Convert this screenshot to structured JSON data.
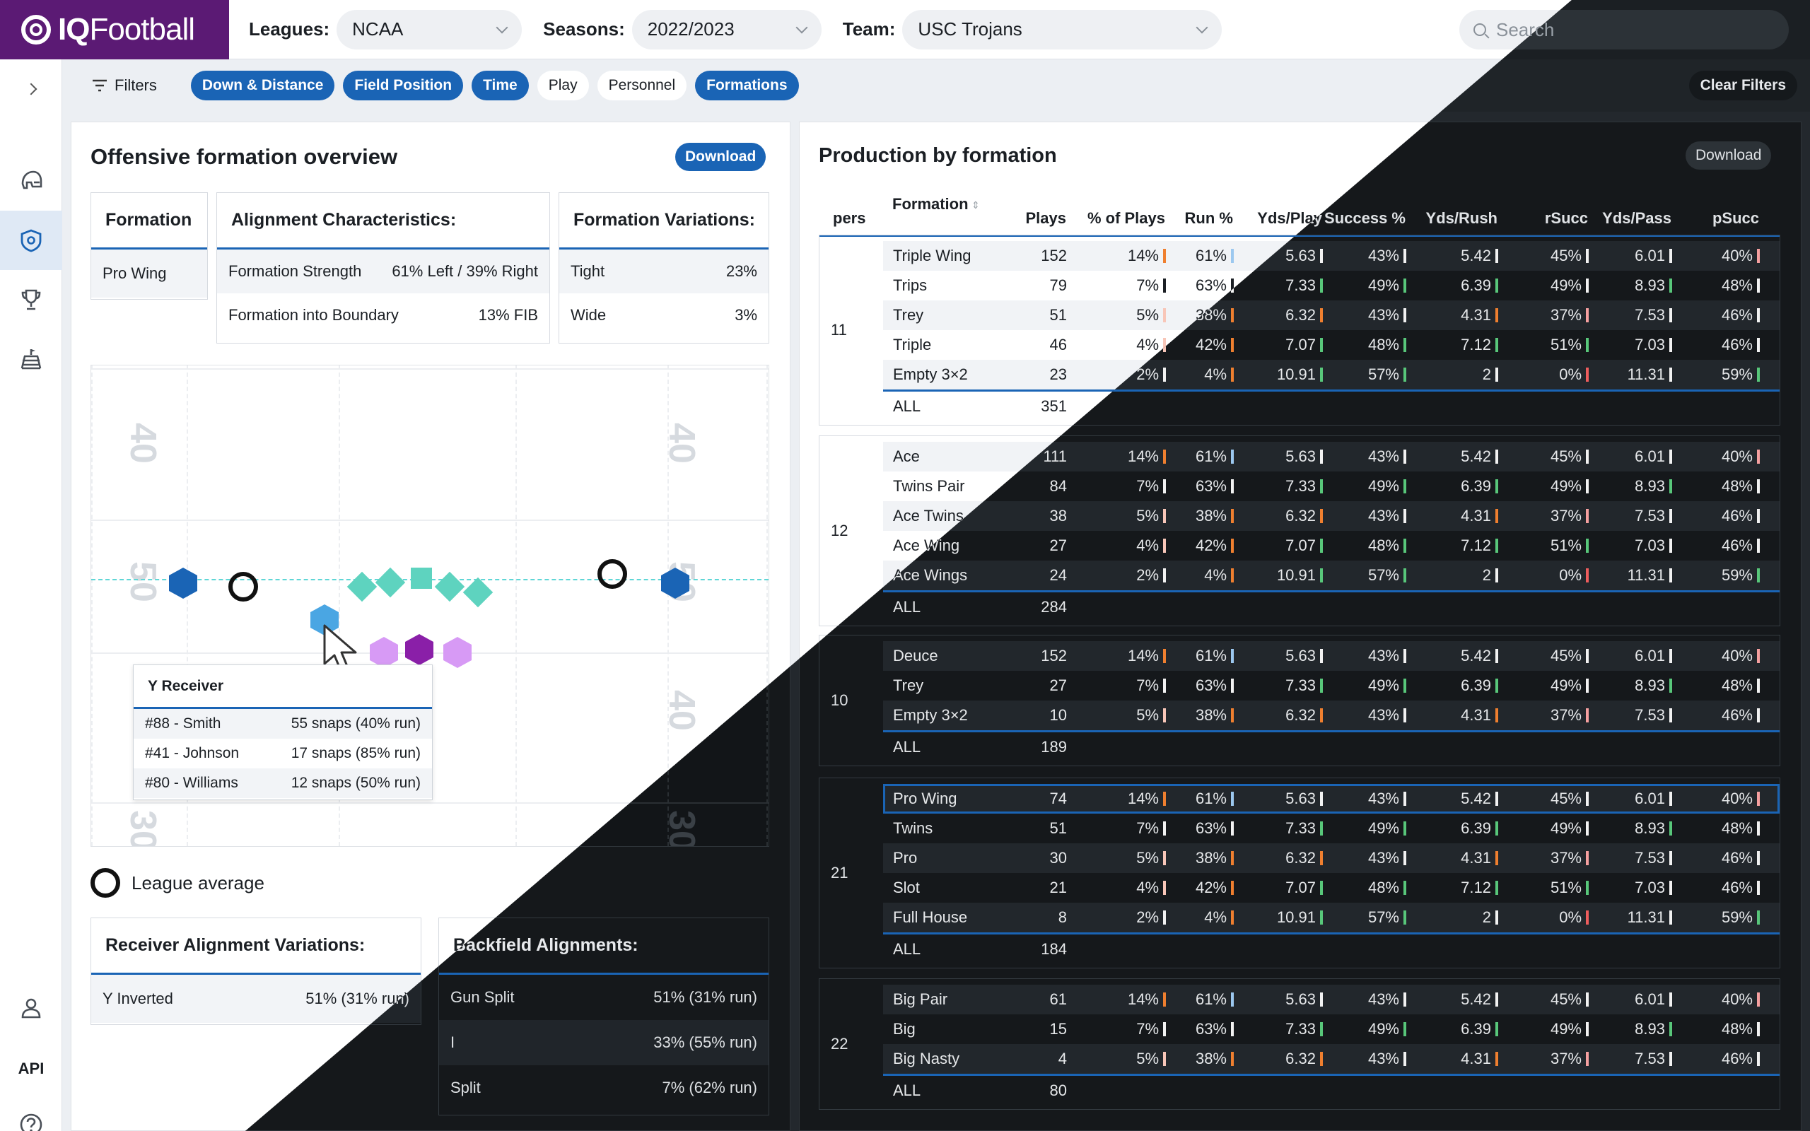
{
  "app": {
    "logo_text_bold": "IQ",
    "logo_text": "Football"
  },
  "header": {
    "leagues_label": "Leagues:",
    "leagues_value": "NCAA",
    "seasons_label": "Seasons:",
    "seasons_value": "2022/2023",
    "team_label": "Team:",
    "team_value": "USC Trojans",
    "search_placeholder": "Search"
  },
  "sidebar": {
    "api_label": "API"
  },
  "filterbar": {
    "filters_label": "Filters",
    "pills": [
      {
        "label": "Down & Distance",
        "active": true
      },
      {
        "label": "Field Position",
        "active": true
      },
      {
        "label": "Time",
        "active": true
      },
      {
        "label": "Play",
        "active": false
      },
      {
        "label": "Personnel",
        "active": false
      },
      {
        "label": "Formations",
        "active": true
      }
    ],
    "clear_label": "Clear Filters"
  },
  "left": {
    "title": "Offensive formation overview",
    "download_label": "Download",
    "formation_card": {
      "header": "Formation",
      "value": "Pro Wing"
    },
    "alignment_card": {
      "header": "Alignment Characteristics:",
      "rows": [
        {
          "label": "Formation Strength",
          "value": "61% Left / 39% Right"
        },
        {
          "label": "Formation into Boundary",
          "value": "13% FIB"
        }
      ]
    },
    "variations_card": {
      "header": "Formation Variations:",
      "rows": [
        {
          "label": "Tight",
          "value": "23%"
        },
        {
          "label": "Wide",
          "value": "3%"
        }
      ]
    },
    "field": {
      "yard_numbers": [
        "40",
        "40",
        "50",
        "50",
        "40",
        "30",
        "30"
      ],
      "tooltip": {
        "title": "Y Receiver",
        "rows": [
          {
            "player": "#88 - Smith",
            "snaps": "55 snaps (40% run)"
          },
          {
            "player": "#41 - Johnson",
            "snaps": "17 snaps (85% run)"
          },
          {
            "player": "#80 - Williams",
            "snaps": "12 snaps (50% run)"
          }
        ]
      }
    },
    "legend_label": "League average",
    "receiver_card": {
      "header": "Receiver Alignment Variations:",
      "rows": [
        {
          "label": "Y Inverted",
          "value": "51% (31% run)"
        }
      ]
    },
    "backfield_card": {
      "header": "Backfield Alignments:",
      "rows": [
        {
          "label": "Gun Split",
          "value": "51% (31% run)"
        },
        {
          "label": "I",
          "value": "33% (55% run)"
        },
        {
          "label": "Split",
          "value": "7% (62% run)"
        }
      ]
    }
  },
  "right": {
    "title": "Production by formation",
    "download_label": "Download",
    "columns": [
      "pers",
      "Formation",
      "Plays",
      "% of Plays",
      "Run %",
      "Yds/Play",
      "Success %",
      "Yds/Rush",
      "rSucc",
      "Yds/Pass",
      "pSucc"
    ],
    "sort_glyph": "⇕",
    "groups": [
      {
        "pers": "11",
        "all_label": "ALL",
        "all_plays": "351",
        "rows": [
          [
            "Triple Wing",
            "152",
            "14%",
            "61%",
            "5.63",
            "43%",
            "5.42",
            "45%",
            "6.01",
            "40%"
          ],
          [
            "Trips",
            "79",
            "7%",
            "63%",
            "7.33",
            "49%",
            "6.39",
            "49%",
            "8.93",
            "48%"
          ],
          [
            "Trey",
            "51",
            "5%",
            "38%",
            "6.32",
            "43%",
            "4.31",
            "37%",
            "7.53",
            "46%"
          ],
          [
            "Triple",
            "46",
            "4%",
            "42%",
            "7.07",
            "48%",
            "7.12",
            "51%",
            "7.03",
            "46%"
          ],
          [
            "Empty 3×2",
            "23",
            "2%",
            "4%",
            "10.91",
            "57%",
            "2",
            "0%",
            "11.31",
            "59%"
          ]
        ]
      },
      {
        "pers": "12",
        "all_label": "ALL",
        "all_plays": "284",
        "rows": [
          [
            "Ace",
            "111",
            "14%",
            "61%",
            "5.63",
            "43%",
            "5.42",
            "45%",
            "6.01",
            "40%"
          ],
          [
            "Twins Pair",
            "84",
            "7%",
            "63%",
            "7.33",
            "49%",
            "6.39",
            "49%",
            "8.93",
            "48%"
          ],
          [
            "Ace Twins",
            "38",
            "5%",
            "38%",
            "6.32",
            "43%",
            "4.31",
            "37%",
            "7.53",
            "46%"
          ],
          [
            "Ace Wing",
            "27",
            "4%",
            "42%",
            "7.07",
            "48%",
            "7.12",
            "51%",
            "7.03",
            "46%"
          ],
          [
            "Ace Wings",
            "24",
            "2%",
            "4%",
            "10.91",
            "57%",
            "2",
            "0%",
            "11.31",
            "59%"
          ]
        ]
      },
      {
        "pers": "10",
        "all_label": "ALL",
        "all_plays": "189",
        "rows": [
          [
            "Deuce",
            "152",
            "14%",
            "61%",
            "5.63",
            "43%",
            "5.42",
            "45%",
            "6.01",
            "40%"
          ],
          [
            "Trey",
            "27",
            "7%",
            "63%",
            "7.33",
            "49%",
            "6.39",
            "49%",
            "8.93",
            "48%"
          ],
          [
            "Empty 3×2",
            "10",
            "5%",
            "38%",
            "6.32",
            "43%",
            "4.31",
            "37%",
            "7.53",
            "46%"
          ]
        ]
      },
      {
        "pers": "21",
        "all_label": "ALL",
        "all_plays": "184",
        "rows": [
          [
            "Pro Wing",
            "74",
            "14%",
            "61%",
            "5.63",
            "43%",
            "5.42",
            "45%",
            "6.01",
            "40%"
          ],
          [
            "Twins",
            "51",
            "7%",
            "63%",
            "7.33",
            "49%",
            "6.39",
            "49%",
            "8.93",
            "48%"
          ],
          [
            "Pro",
            "30",
            "5%",
            "38%",
            "6.32",
            "43%",
            "4.31",
            "37%",
            "7.53",
            "46%"
          ],
          [
            "Slot",
            "21",
            "4%",
            "42%",
            "7.07",
            "48%",
            "7.12",
            "51%",
            "7.03",
            "46%"
          ],
          [
            "Full House",
            "8",
            "2%",
            "4%",
            "10.91",
            "57%",
            "2",
            "0%",
            "11.31",
            "59%"
          ]
        ]
      },
      {
        "pers": "22",
        "all_label": "ALL",
        "all_plays": "80",
        "rows": [
          [
            "Big Pair",
            "61",
            "14%",
            "61%",
            "5.63",
            "43%",
            "5.42",
            "45%",
            "6.01",
            "40%"
          ],
          [
            "Big",
            "15",
            "7%",
            "63%",
            "7.33",
            "49%",
            "6.39",
            "49%",
            "8.93",
            "48%"
          ],
          [
            "Big Nasty",
            "4",
            "5%",
            "38%",
            "6.32",
            "43%",
            "4.31",
            "37%",
            "7.53",
            "46%"
          ]
        ]
      }
    ],
    "highlight_formation": "Pro Wing"
  },
  "colors": {
    "brand": "#5b1a74",
    "accent": "#1a64b5",
    "bar_orange": "#ef7f2f",
    "bar_blue": "#9cc8ef",
    "bar_green": "#58c77a",
    "bar_red": "#ee5d5d",
    "bar_peach": "#f8c6b8",
    "bar_dark": "#1b1f24",
    "bar_pink": "#f6a0a0"
  }
}
